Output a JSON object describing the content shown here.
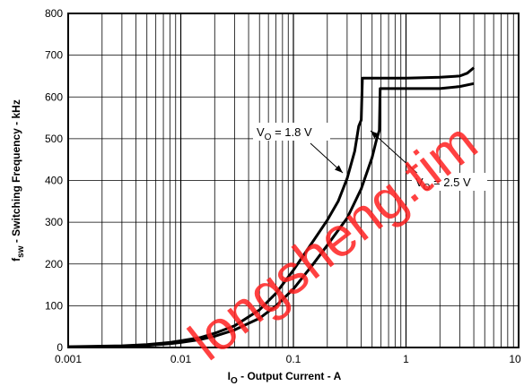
{
  "chart_data": {
    "type": "line",
    "xscale": "log",
    "xlim": [
      0.001,
      10
    ],
    "ylim": [
      0,
      800
    ],
    "grid": true,
    "x_ticks": [
      {
        "value": 0.001,
        "label": "0.001"
      },
      {
        "value": 0.01,
        "label": "0.01"
      },
      {
        "value": 0.1,
        "label": "0.1"
      },
      {
        "value": 1,
        "label": "1"
      },
      {
        "value": 10,
        "label": "10"
      }
    ],
    "y_ticks": [
      {
        "value": 0,
        "label": "0"
      },
      {
        "value": 100,
        "label": "100"
      },
      {
        "value": 200,
        "label": "200"
      },
      {
        "value": 300,
        "label": "300"
      },
      {
        "value": 400,
        "label": "400"
      },
      {
        "value": 500,
        "label": "500"
      },
      {
        "value": 600,
        "label": "600"
      },
      {
        "value": 700,
        "label": "700"
      },
      {
        "value": 800,
        "label": "800"
      }
    ],
    "xlabel": {
      "main": "I",
      "sub": "O",
      "rest": " - Output Current - A"
    },
    "ylabel": {
      "main": "f",
      "sub": "sw",
      "rest": " - Switching Frequency - kHz"
    },
    "series": [
      {
        "points": [
          [
            0.001,
            2
          ],
          [
            0.003,
            4
          ],
          [
            0.005,
            7
          ],
          [
            0.008,
            12
          ],
          [
            0.01,
            16
          ],
          [
            0.015,
            24
          ],
          [
            0.02,
            34
          ],
          [
            0.03,
            52
          ],
          [
            0.05,
            90
          ],
          [
            0.07,
            130
          ],
          [
            0.1,
            185
          ],
          [
            0.15,
            255
          ],
          [
            0.2,
            305
          ],
          [
            0.25,
            350
          ],
          [
            0.3,
            405
          ],
          [
            0.35,
            470
          ],
          [
            0.38,
            530
          ],
          [
            0.4,
            545
          ],
          [
            0.41,
            645
          ],
          [
            0.5,
            645
          ],
          [
            0.7,
            645
          ],
          [
            1,
            645
          ],
          [
            2,
            647
          ],
          [
            3,
            650
          ],
          [
            3.5,
            657
          ],
          [
            4,
            670
          ]
        ]
      },
      {
        "points": [
          [
            0.001,
            1
          ],
          [
            0.003,
            3
          ],
          [
            0.005,
            5
          ],
          [
            0.008,
            9
          ],
          [
            0.01,
            12
          ],
          [
            0.015,
            19
          ],
          [
            0.02,
            27
          ],
          [
            0.03,
            42
          ],
          [
            0.05,
            70
          ],
          [
            0.07,
            100
          ],
          [
            0.1,
            140
          ],
          [
            0.15,
            200
          ],
          [
            0.2,
            245
          ],
          [
            0.3,
            310
          ],
          [
            0.4,
            380
          ],
          [
            0.5,
            455
          ],
          [
            0.55,
            500
          ],
          [
            0.58,
            520
          ],
          [
            0.59,
            620
          ],
          [
            0.7,
            620
          ],
          [
            1,
            620
          ],
          [
            2,
            620
          ],
          [
            3,
            625
          ],
          [
            4,
            632
          ]
        ]
      }
    ],
    "annotations": [
      {
        "label_main": "V",
        "label_sub": "O",
        "label_rest": " = 1.8 V"
      },
      {
        "label_main": "V",
        "label_sub": "O",
        "label_rest": " = 2.5 V"
      }
    ],
    "watermark": "longsheng.tim"
  }
}
